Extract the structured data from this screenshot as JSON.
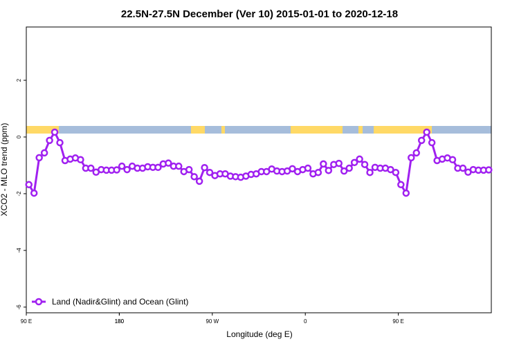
{
  "chart_data": {
    "type": "line",
    "title": "22.5N-27.5N December (Ver 10)   2015-01-01 to 2020-12-18",
    "xlabel": "Longitude (deg E)",
    "ylabel": "XCO2 - MLO trend (ppm)",
    "xlim": [
      90,
      540
    ],
    "ylim": [
      -6.2,
      3.88
    ],
    "xticks": [
      {
        "value": 90,
        "label": "90 E"
      },
      180,
      {
        "value": 270,
        "label": "90 W"
      },
      {
        "value": 360,
        "label": "0"
      },
      {
        "value": 450,
        "label": "90 E"
      },
      180.0001
    ],
    "yticks": [
      -6,
      -4,
      -2,
      0,
      2
    ],
    "legend": "bottom-left",
    "x": [
      92.5,
      97.5,
      102.5,
      107.5,
      112.5,
      117.5,
      122.5,
      127.5,
      132.5,
      137.5,
      142.5,
      147.5,
      152.5,
      157.5,
      162.5,
      167.5,
      172.5,
      177.5,
      182.5,
      187.5,
      192.5,
      197.5,
      202.5,
      207.5,
      212.5,
      217.5,
      222.5,
      227.5,
      232.5,
      237.5,
      242.5,
      247.5,
      252.5,
      257.5,
      262.5,
      267.5,
      272.5,
      277.5,
      282.5,
      287.5,
      292.5,
      297.5,
      302.5,
      307.5,
      312.5,
      317.5,
      322.5,
      327.5,
      332.5,
      337.5,
      342.5,
      347.5,
      352.5,
      357.5,
      362.5,
      367.5,
      372.5,
      377.5,
      382.5,
      387.5,
      392.5,
      397.5,
      402.5,
      407.5,
      412.5,
      417.5,
      422.5,
      427.5,
      432.5,
      437.5,
      442.5,
      447.5,
      452.5,
      457.5,
      462.5,
      467.5,
      472.5,
      477.5,
      482.5,
      487.5,
      492.5,
      497.5,
      502.5,
      507.5,
      512.5,
      517.5,
      522.5,
      527.5,
      532.5,
      537.5
    ],
    "series": [
      {
        "name": "Land (Nadir&Glint) and Ocean (Glint)",
        "color": "#a020f0",
        "values": [
          -1.68,
          -1.98,
          -0.73,
          -0.56,
          -0.12,
          0.17,
          -0.2,
          -0.83,
          -0.78,
          -0.74,
          -0.8,
          -1.1,
          -1.1,
          -1.24,
          -1.15,
          -1.17,
          -1.17,
          -1.16,
          -1.03,
          -1.15,
          -1.03,
          -1.1,
          -1.1,
          -1.05,
          -1.07,
          -1.07,
          -0.95,
          -0.92,
          -1.03,
          -1.03,
          -1.22,
          -1.15,
          -1.4,
          -1.56,
          -1.08,
          -1.25,
          -1.36,
          -1.3,
          -1.3,
          -1.38,
          -1.4,
          -1.42,
          -1.38,
          -1.32,
          -1.3,
          -1.22,
          -1.22,
          -1.13,
          -1.2,
          -1.22,
          -1.2,
          -1.12,
          -1.22,
          -1.15,
          -1.1,
          -1.3,
          -1.25,
          -0.95,
          -1.18,
          -0.97,
          -0.93,
          -1.2,
          -1.1,
          -0.9,
          -0.78,
          -0.97,
          -1.25,
          -1.07,
          -1.1,
          -1.1,
          -1.15,
          -1.25,
          -1.68,
          -1.98,
          -0.73,
          -0.56,
          -0.12,
          0.17,
          -0.2,
          -0.83,
          -0.78,
          -0.74,
          -0.8,
          -1.1,
          -1.1,
          -1.24,
          -1.15,
          -1.17,
          -1.17,
          -1.16
        ]
      }
    ]
  }
}
